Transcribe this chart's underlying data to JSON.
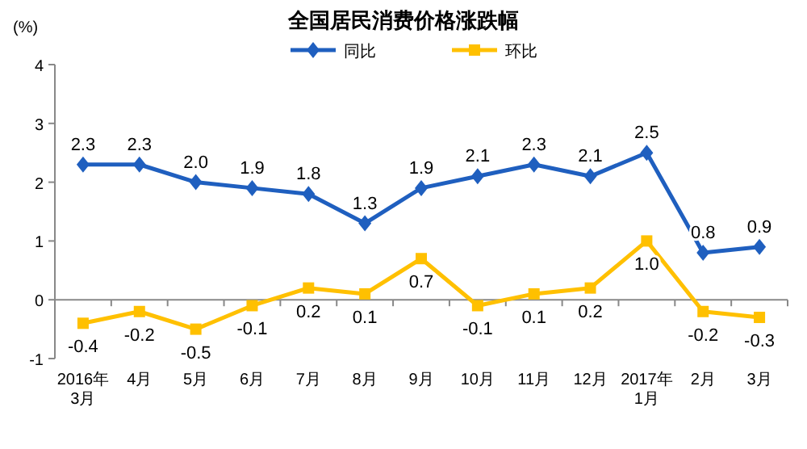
{
  "chart_data": {
    "type": "line",
    "title": "全国居民消费价格涨跌幅",
    "ylabel": "(%)",
    "categories": [
      "2016年\n3月",
      "4月",
      "5月",
      "6月",
      "7月",
      "8月",
      "9月",
      "10月",
      "11月",
      "12月",
      "2017年\n1月",
      "2月",
      "3月"
    ],
    "series": [
      {
        "name": "同比",
        "color": "#1f5fbf",
        "marker": "diamond",
        "values": [
          2.3,
          2.3,
          2.0,
          1.9,
          1.8,
          1.3,
          1.9,
          2.1,
          2.3,
          2.1,
          2.5,
          0.8,
          0.9
        ],
        "value_labels": [
          "2.3",
          "2.3",
          "2.0",
          "1.9",
          "1.8",
          "1.3",
          "1.9",
          "2.1",
          "2.3",
          "2.1",
          "2.5",
          "0.8",
          "0.9"
        ]
      },
      {
        "name": "环比",
        "color": "#ffc000",
        "marker": "square",
        "values": [
          -0.4,
          -0.2,
          -0.5,
          -0.1,
          0.2,
          0.1,
          0.7,
          -0.1,
          0.1,
          0.2,
          1.0,
          -0.2,
          -0.3
        ],
        "value_labels": [
          "-0.4",
          "-0.2",
          "-0.5",
          "-0.1",
          "0.2",
          "0.1",
          "0.7",
          "-0.1",
          "0.1",
          "0.2",
          "1.0",
          "-0.2",
          "-0.3"
        ]
      }
    ],
    "ylim": [
      -1,
      4
    ],
    "yticks": [
      -1,
      0,
      1,
      2,
      3,
      4
    ],
    "legend": "top"
  }
}
